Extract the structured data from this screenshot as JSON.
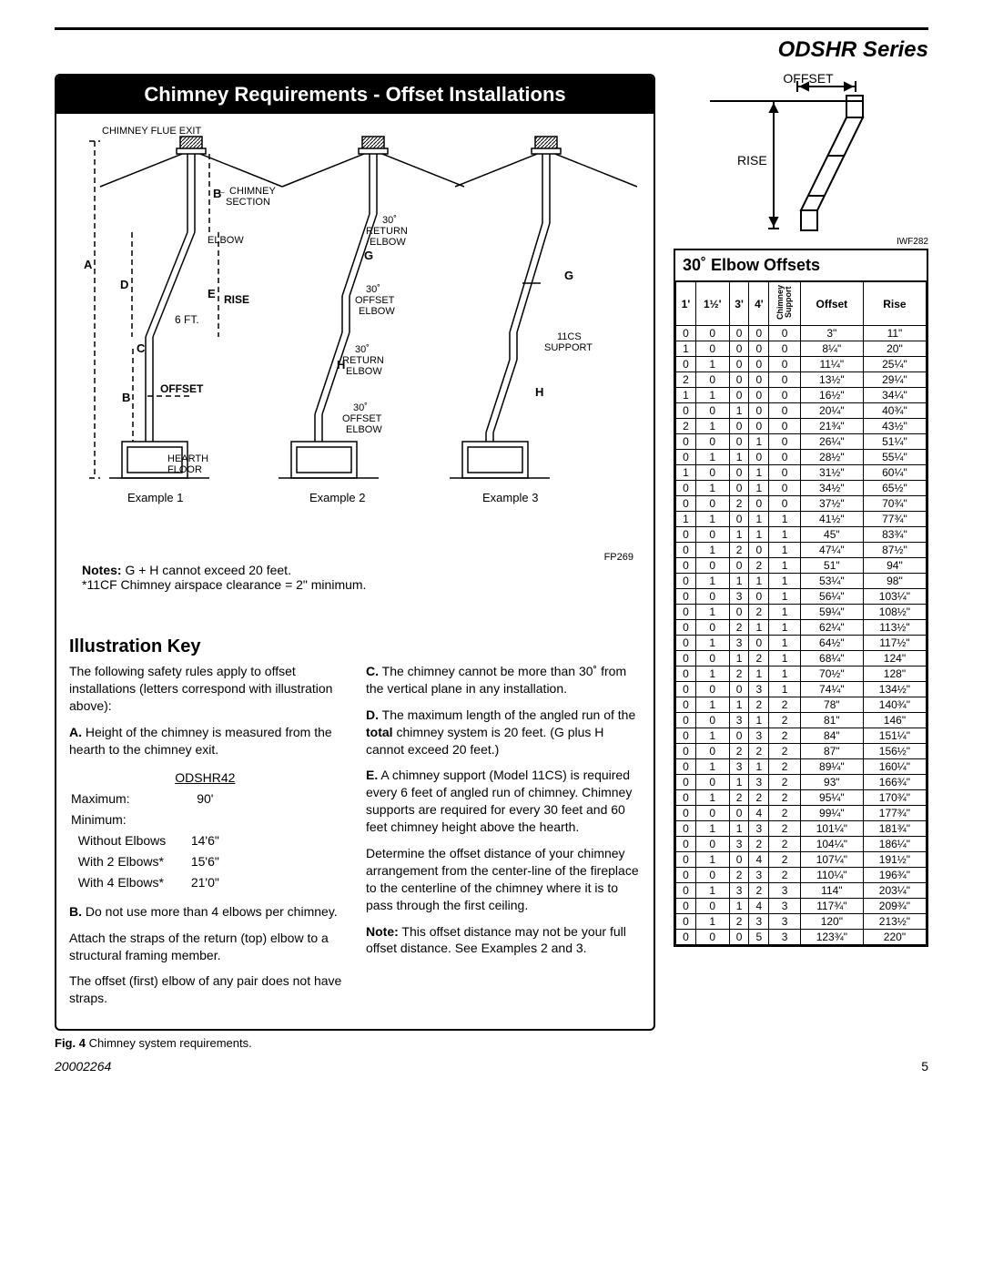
{
  "header": {
    "series": "ODSHR Series"
  },
  "banner": "Chimney Requirements - Offset Installations",
  "diagram": {
    "labels": {
      "chimney_flue_exit": "CHIMNEY FLUE EXIT",
      "chimney_section": "CHIMNEY\nSECTION",
      "elbow": "ELBOW",
      "return_elbow30": "30˚\nRETURN\nELBOW",
      "offset_elbow30": "30˚\nOFFSET\nELBOW",
      "rise": "RISE",
      "rise_ft": "6 FT.",
      "offset": "OFFSET",
      "hearth_floor": "HEARTH\nFLOOR",
      "support11cs": "11CS\nSUPPORT",
      "A": "A",
      "B": "B",
      "C": "C",
      "D": "D",
      "E": "E",
      "G": "G",
      "H": "H"
    },
    "examples": [
      "Example 1",
      "Example 2",
      "Example 3"
    ],
    "fp": "FP269"
  },
  "notes": {
    "line1_bold": "Notes:",
    "line1": " G + H cannot exceed 20 feet.",
    "line2": "*11CF Chimney airspace clearance = 2\" minimum."
  },
  "illustration_key": {
    "title": "Illustration Key",
    "intro": "The following safety rules apply to offset installations (letters correspond with illustration above):",
    "A": "Height of the chimney is measured from the hearth to the chimney exit.",
    "height_table": {
      "header": "ODSHR42",
      "rows": [
        [
          "Maximum:",
          "90'"
        ],
        [
          "Minimum:",
          ""
        ],
        [
          "  Without Elbows",
          "14'6\""
        ],
        [
          "  With 2 Elbows*",
          "15'6\""
        ],
        [
          "  With 4 Elbows*",
          "21'0\""
        ]
      ]
    },
    "B1": "Do not use more than 4 elbows per chimney.",
    "B_attach": "Attach the straps of the return (top) elbow to a structural framing member.",
    "B_offset_first": "The offset (first) elbow of any pair does not have straps.",
    "C": "The chimney cannot be more than 30˚ from the vertical plane in any installation.",
    "D": "The maximum length of the angled run of the total chimney system is 20 feet. (G plus H cannot exceed 20 feet.)",
    "E": "A chimney support (Model 11CS) is required every 6 feet of angled run of chimney. Chimney supports are required for every 30 feet and 60 feet chimney height above the hearth.",
    "determine": "Determine the offset distance of your chimney arrangement from the center-line of the fireplace to the centerline of the chimney where it is to pass through the first ceiling.",
    "note_bold": "Note:",
    "note": " This offset distance may not be your full offset distance. See Examples 2 and 3."
  },
  "figcap": {
    "bold": "Fig. 4",
    "text": "  Chimney system requirements."
  },
  "right": {
    "offset_label": "OFFSET",
    "rise_label": "RISE",
    "iwf": "IWF282",
    "elbow_title": "30˚ Elbow Offsets",
    "columns": [
      "1'",
      "1½'",
      "3'",
      "4'",
      "Chimney Support",
      "Offset",
      "Rise"
    ],
    "rows": [
      [
        "0",
        "0",
        "0",
        "0",
        "0",
        "3\"",
        "11\""
      ],
      [
        "1",
        "0",
        "0",
        "0",
        "0",
        "8¼\"",
        "20\""
      ],
      [
        "0",
        "1",
        "0",
        "0",
        "0",
        "11¼\"",
        "25¼\""
      ],
      [
        "2",
        "0",
        "0",
        "0",
        "0",
        "13½\"",
        "29¼\""
      ],
      [
        "1",
        "1",
        "0",
        "0",
        "0",
        "16½\"",
        "34¼\""
      ],
      [
        "0",
        "0",
        "1",
        "0",
        "0",
        "20¼\"",
        "40¾\""
      ],
      [
        "2",
        "1",
        "0",
        "0",
        "0",
        "21¾\"",
        "43½\""
      ],
      [
        "0",
        "0",
        "0",
        "1",
        "0",
        "26¼\"",
        "51¼\""
      ],
      [
        "0",
        "1",
        "1",
        "0",
        "0",
        "28½\"",
        "55¼\""
      ],
      [
        "1",
        "0",
        "0",
        "1",
        "0",
        "31½\"",
        "60¼\""
      ],
      [
        "0",
        "1",
        "0",
        "1",
        "0",
        "34½\"",
        "65½\""
      ],
      [
        "0",
        "0",
        "2",
        "0",
        "0",
        "37½\"",
        "70¾\""
      ],
      [
        "1",
        "1",
        "0",
        "1",
        "1",
        "41½\"",
        "77¾\""
      ],
      [
        "0",
        "0",
        "1",
        "1",
        "1",
        "45\"",
        "83¾\""
      ],
      [
        "0",
        "1",
        "2",
        "0",
        "1",
        "47¼\"",
        "87½\""
      ],
      [
        "0",
        "0",
        "0",
        "2",
        "1",
        "51\"",
        "94\""
      ],
      [
        "0",
        "1",
        "1",
        "1",
        "1",
        "53¼\"",
        "98\""
      ],
      [
        "0",
        "0",
        "3",
        "0",
        "1",
        "56¼\"",
        "103¼\""
      ],
      [
        "0",
        "1",
        "0",
        "2",
        "1",
        "59¼\"",
        "108½\""
      ],
      [
        "0",
        "0",
        "2",
        "1",
        "1",
        "62¼\"",
        "113½\""
      ],
      [
        "0",
        "1",
        "3",
        "0",
        "1",
        "64½\"",
        "117½\""
      ],
      [
        "0",
        "0",
        "1",
        "2",
        "1",
        "68¼\"",
        "124\""
      ],
      [
        "0",
        "1",
        "2",
        "1",
        "1",
        "70½\"",
        "128\""
      ],
      [
        "0",
        "0",
        "0",
        "3",
        "1",
        "74¼\"",
        "134½\""
      ],
      [
        "0",
        "1",
        "1",
        "2",
        "2",
        "78\"",
        "140¾\""
      ],
      [
        "0",
        "0",
        "3",
        "1",
        "2",
        "81\"",
        "146\""
      ],
      [
        "0",
        "1",
        "0",
        "3",
        "2",
        "84\"",
        "151¼\""
      ],
      [
        "0",
        "0",
        "2",
        "2",
        "2",
        "87\"",
        "156½\""
      ],
      [
        "0",
        "1",
        "3",
        "1",
        "2",
        "89¼\"",
        "160¼\""
      ],
      [
        "0",
        "0",
        "1",
        "3",
        "2",
        "93\"",
        "166¾\""
      ],
      [
        "0",
        "1",
        "2",
        "2",
        "2",
        "95¼\"",
        "170¾\""
      ],
      [
        "0",
        "0",
        "0",
        "4",
        "2",
        "99¼\"",
        "177¾\""
      ],
      [
        "0",
        "1",
        "1",
        "3",
        "2",
        "101¼\"",
        "181¾\""
      ],
      [
        "0",
        "0",
        "3",
        "2",
        "2",
        "104¼\"",
        "186¼\""
      ],
      [
        "0",
        "1",
        "0",
        "4",
        "2",
        "107¼\"",
        "191½\""
      ],
      [
        "0",
        "0",
        "2",
        "3",
        "2",
        "110¼\"",
        "196¾\""
      ],
      [
        "0",
        "1",
        "3",
        "2",
        "3",
        "114\"",
        "203¼\""
      ],
      [
        "0",
        "0",
        "1",
        "4",
        "3",
        "117¾\"",
        "209¾\""
      ],
      [
        "0",
        "1",
        "2",
        "3",
        "3",
        "120\"",
        "213½\""
      ],
      [
        "0",
        "0",
        "0",
        "5",
        "3",
        "123¾\"",
        "220\""
      ]
    ]
  },
  "footer": {
    "docnum": "20002264",
    "pagenum": "5"
  }
}
